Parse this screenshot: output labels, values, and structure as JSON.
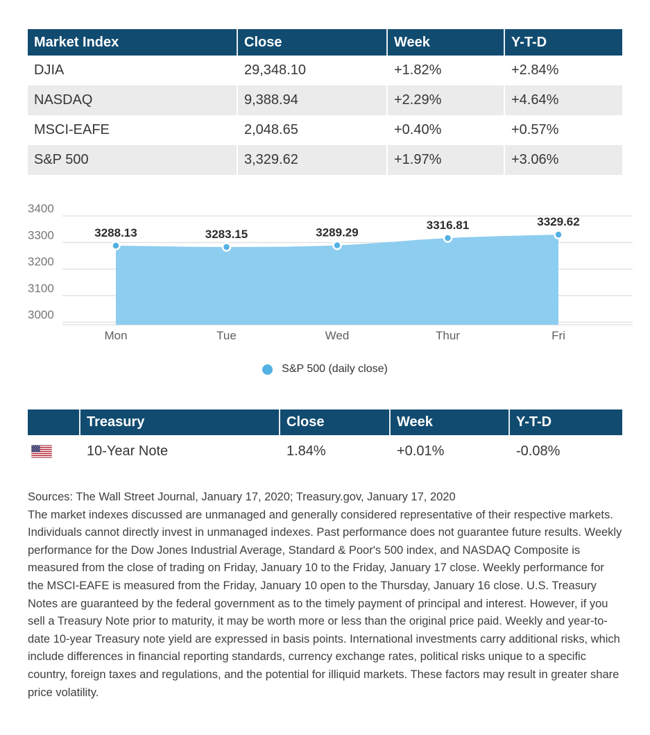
{
  "colors": {
    "header_bg": "#114b70",
    "row_alt": "#ebebeb",
    "area_fill": "#8dcdf0",
    "point_fill": "#53b1e4",
    "grid_line": "#e4e4e4",
    "axis_text": "#757575",
    "xaxis_text": "#5f5f5f",
    "text_dark": "#363636",
    "label_text": "#2b2b2b"
  },
  "market_table": {
    "headers": [
      "Market Index",
      "Close",
      "Week",
      "Y-T-D"
    ],
    "rows": [
      {
        "name": "DJIA",
        "close": "29,348.10",
        "week": "+1.82%",
        "ytd": "+2.84%"
      },
      {
        "name": "NASDAQ",
        "close": "9,388.94",
        "week": "+2.29%",
        "ytd": "+4.64%"
      },
      {
        "name": "MSCI-EAFE",
        "close": "2,048.65",
        "week": "+0.40%",
        "ytd": "+0.57%"
      },
      {
        "name": "S&P 500",
        "close": "3,329.62",
        "week": "+1.97%",
        "ytd": "+3.06%"
      }
    ]
  },
  "chart_data": {
    "type": "area",
    "categories": [
      "Mon",
      "Tue",
      "Wed",
      "Thur",
      "Fri"
    ],
    "series": [
      {
        "name": "S&P 500 (daily close)",
        "values": [
          3288.13,
          3283.15,
          3289.29,
          3316.81,
          3329.62
        ]
      }
    ],
    "point_labels": [
      "3288.13",
      "3283.15",
      "3289.29",
      "3316.81",
      "3329.62"
    ],
    "yticks": [
      3000,
      3100,
      3200,
      3300,
      3400
    ],
    "ylim": [
      2990,
      3450
    ],
    "grid": true,
    "legend_position": "bottom"
  },
  "treasury_table": {
    "headers": [
      "",
      "Treasury",
      "Close",
      "Week",
      "Y-T-D"
    ],
    "rows": [
      {
        "flag": "us-flag",
        "name": "10-Year Note",
        "close": "1.84%",
        "week": "+0.01%",
        "ytd": "-0.08%"
      }
    ]
  },
  "footer": {
    "sources": "Sources: The Wall Street Journal, January 17, 2020; Treasury.gov, January 17, 2020",
    "disclaimer": "The market indexes discussed are unmanaged and generally considered representative of their respective markets. Individuals cannot directly invest in unmanaged indexes. Past performance does not guarantee future results. Weekly performance for the Dow Jones Industrial Average, Standard & Poor's 500 index, and NASDAQ Composite is measured from the close of trading on Friday, January 10 to the Friday, January 17 close. Weekly performance for the MSCI-EAFE is measured from the Friday, January 10 open to the Thursday, January 16 close. U.S. Treasury Notes are guaranteed by the federal government as to the timely payment of principal and interest. However, if you sell a Treasury Note prior to maturity, it may be worth more or less than the original price paid. Weekly and year-to-date 10-year Treasury note yield are expressed in basis points. International investments carry additional risks, which include differences in financial reporting standards, currency exchange rates, political risks unique to a specific country, foreign taxes and regulations, and the potential for illiquid markets. These factors may result in greater share price volatility."
  }
}
